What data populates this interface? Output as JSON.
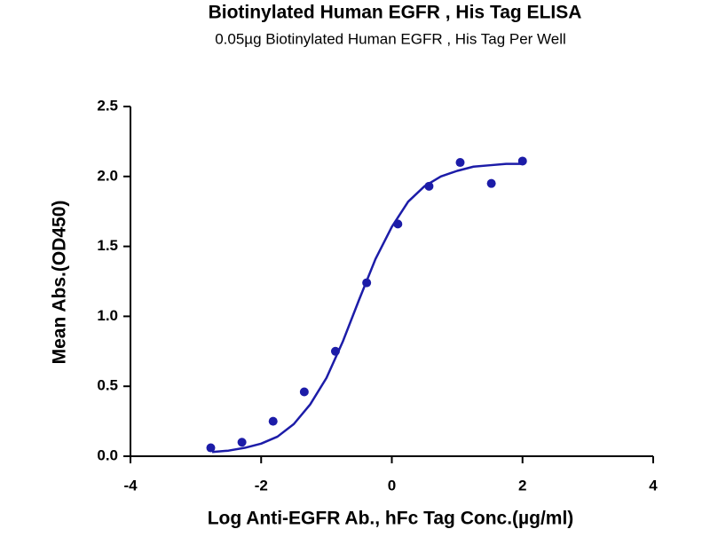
{
  "chart_data": {
    "type": "scatter",
    "title": "Biotinylated Human EGFR , His Tag ELISA",
    "subtitle": "0.05µg Biotinylated Human EGFR , His Tag Per Well",
    "x_label": "Log Anti-EGFR Ab., hFc Tag Conc.(µg/ml)",
    "y_label": "Mean Abs.(OD450)",
    "xlim": [
      -4,
      4
    ],
    "xticks": [
      -4,
      -2,
      0,
      2,
      4
    ],
    "ylim": [
      0,
      2.5
    ],
    "yticks": [
      {
        "value": 0,
        "label": "0.0"
      },
      0.5,
      {
        "value": 1,
        "label": "1.0"
      },
      1.5,
      {
        "value": 2,
        "label": "2.0"
      },
      2.5
    ],
    "series": [
      {
        "type": "scatter",
        "color": "#1c1ca8",
        "x": [
          -2.771,
          -2.294,
          -1.817,
          -1.34,
          -0.863,
          -0.385,
          0.092,
          0.569,
          1.046,
          1.523,
          2.0
        ],
        "values": [
          0.06,
          0.1,
          0.25,
          0.46,
          0.75,
          1.24,
          1.66,
          1.93,
          2.1,
          1.95,
          2.11
        ]
      },
      {
        "type": "line",
        "color": "#1c1ca8",
        "x": [
          -2.75,
          -2.5,
          -2.25,
          -2,
          -1.75,
          -1.5,
          -1.25,
          -1,
          -0.75,
          -0.5,
          -0.25,
          0,
          0.25,
          0.5,
          0.75,
          1,
          1.25,
          1.5,
          1.75,
          2
        ],
        "values": [
          0.03,
          0.04,
          0.06,
          0.09,
          0.14,
          0.23,
          0.37,
          0.56,
          0.82,
          1.12,
          1.41,
          1.64,
          1.82,
          1.93,
          2.0,
          2.04,
          2.07,
          2.08,
          2.09,
          2.09
        ]
      }
    ]
  }
}
